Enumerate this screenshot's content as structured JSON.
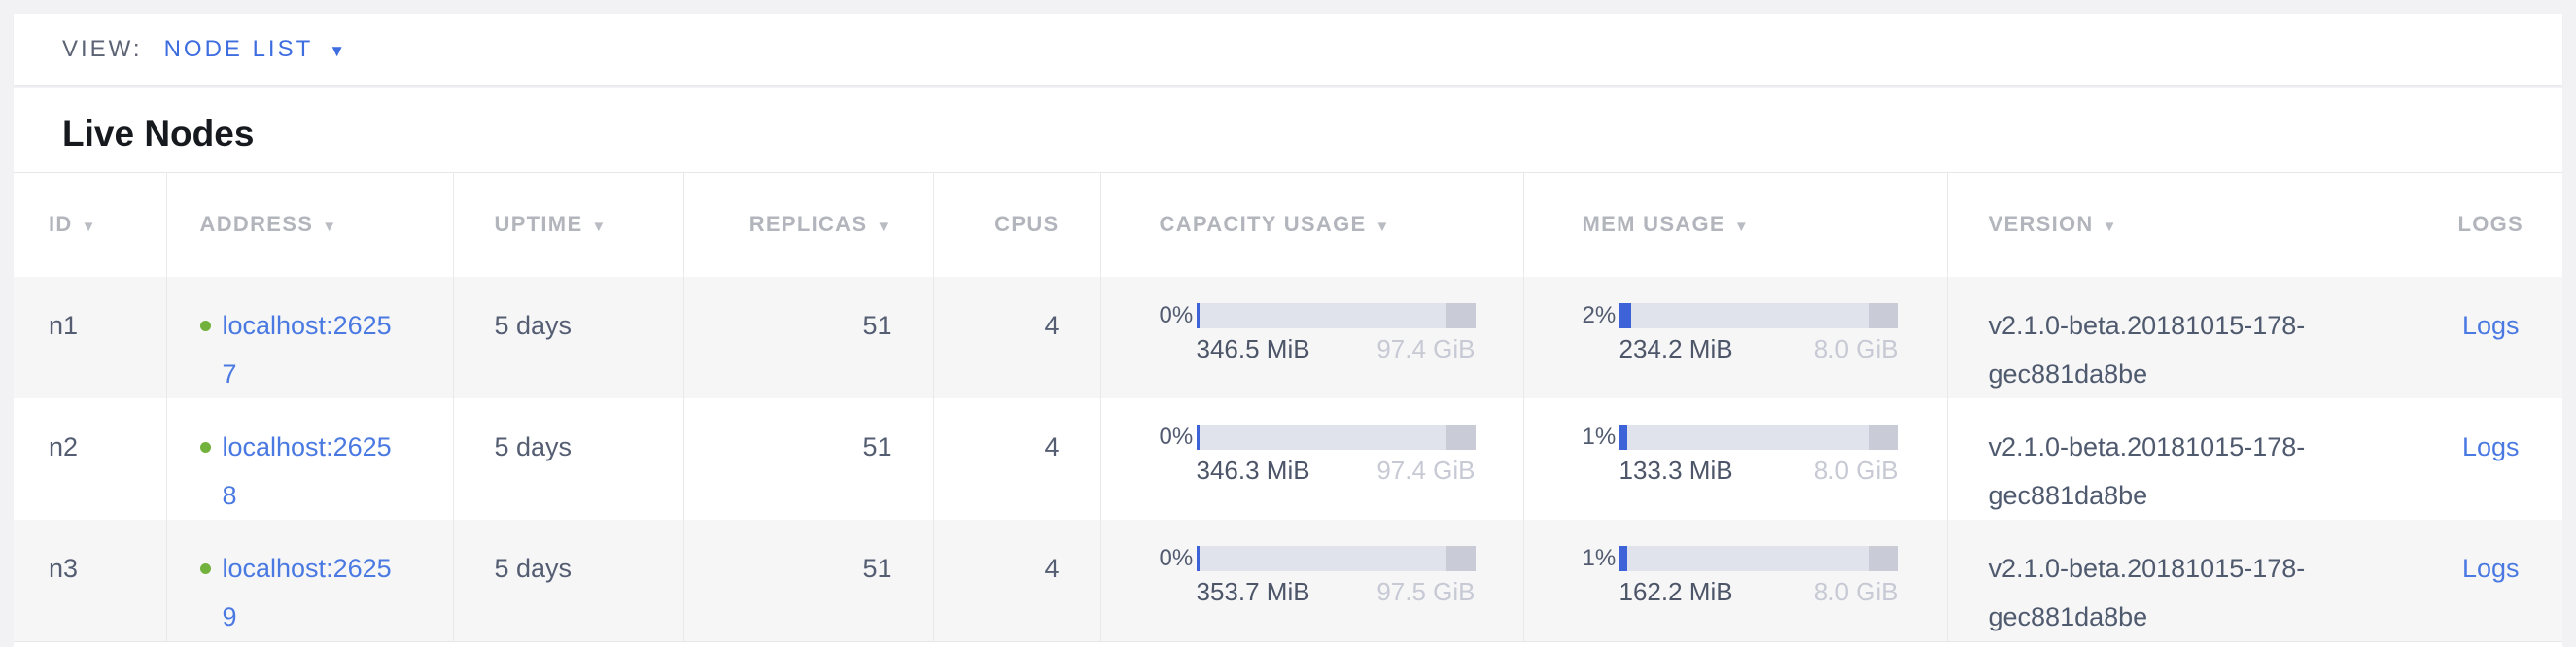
{
  "view_bar": {
    "label": "VIEW:",
    "selected": "NODE LIST",
    "dropdown_icon": "▼"
  },
  "section": {
    "title": "Live Nodes"
  },
  "colors": {
    "accent_blue": "#3e6de0",
    "link_blue": "#4a79e2",
    "live_dot_green": "#72b23c",
    "bar_background": "#e0e2ec",
    "bar_fill_blue": "#3e63d8",
    "bar_end_cap_gray": "#c9ccd7",
    "row_stripe": "#f6f6f7",
    "header_gray": "#b2b5bc",
    "cell_text": "#545d71"
  },
  "table": {
    "headers": [
      {
        "label": "ID",
        "arrow": "▼"
      },
      {
        "label": "ADDRESS",
        "arrow": "▼"
      },
      {
        "label": "UPTIME",
        "arrow": "▼"
      },
      {
        "label": "REPLICAS",
        "arrow": "▼"
      },
      {
        "label": "CPUS",
        "arrow": ""
      },
      {
        "label": "CAPACITY USAGE",
        "arrow": "▼"
      },
      {
        "label": "MEM USAGE",
        "arrow": "▼"
      },
      {
        "label": "VERSION",
        "arrow": "▼"
      },
      {
        "label": "LOGS",
        "arrow": ""
      }
    ],
    "rows": [
      {
        "id": "n1",
        "status": "live",
        "address": "localhost:26257",
        "uptime": "5 days",
        "replicas": "51",
        "cpus": "4",
        "capacity": {
          "pct_label": "0%",
          "used": "346.5 MiB",
          "total": "97.4 GiB",
          "fill_pct": 1.1
        },
        "memory": {
          "pct_label": "2%",
          "used": "234.2 MiB",
          "total": "8.0 GiB",
          "fill_pct": 4.2
        },
        "version": "v2.1.0-beta.20181015-178-gec881da8be",
        "logs_label": "Logs"
      },
      {
        "id": "n2",
        "status": "live",
        "address": "localhost:26258",
        "uptime": "5 days",
        "replicas": "51",
        "cpus": "4",
        "capacity": {
          "pct_label": "0%",
          "used": "346.3 MiB",
          "total": "97.4 GiB",
          "fill_pct": 1.1
        },
        "memory": {
          "pct_label": "1%",
          "used": "133.3 MiB",
          "total": "8.0 GiB",
          "fill_pct": 2.8
        },
        "version": "v2.1.0-beta.20181015-178-gec881da8be",
        "logs_label": "Logs"
      },
      {
        "id": "n3",
        "status": "live",
        "address": "localhost:26259",
        "uptime": "5 days",
        "replicas": "51",
        "cpus": "4",
        "capacity": {
          "pct_label": "0%",
          "used": "353.7 MiB",
          "total": "97.5 GiB",
          "fill_pct": 1.1
        },
        "memory": {
          "pct_label": "1%",
          "used": "162.2 MiB",
          "total": "8.0 GiB",
          "fill_pct": 3.0
        },
        "version": "v2.1.0-beta.20181015-178-gec881da8be",
        "logs_label": "Logs"
      }
    ]
  }
}
